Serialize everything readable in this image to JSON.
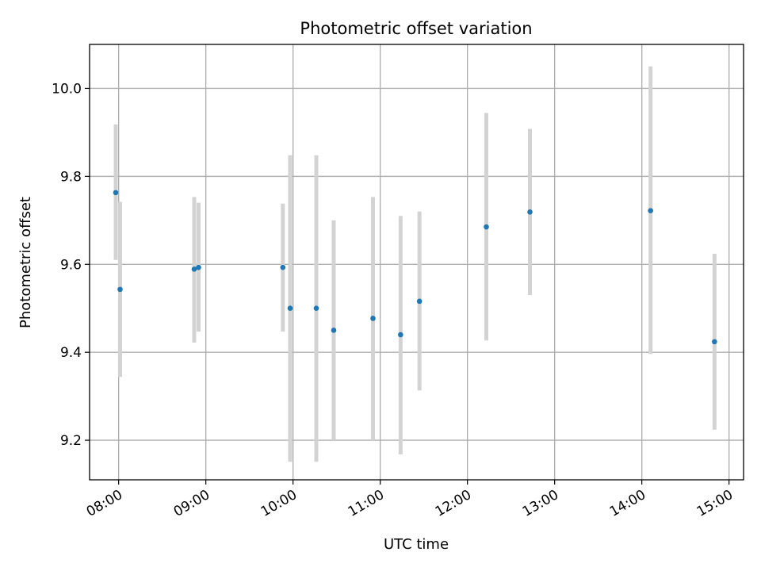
{
  "chart_data": {
    "type": "scatter",
    "title": "Photometric offset variation",
    "xlabel": "UTC time",
    "ylabel": "Photometric offset",
    "x_is_time": true,
    "xlim": [
      "07:40",
      "15:10"
    ],
    "ylim": [
      9.11,
      10.1
    ],
    "xticks": [
      "08:00",
      "09:00",
      "10:00",
      "11:00",
      "12:00",
      "13:00",
      "14:00",
      "15:00"
    ],
    "yticks": [
      9.2,
      9.4,
      9.6,
      9.8,
      10.0
    ],
    "ytick_labels": [
      "9.2",
      "9.4",
      "9.6",
      "9.8",
      "10.0"
    ],
    "grid": true,
    "point_color": "#1f77b4",
    "errorbar_color": "#d3d3d3",
    "points": [
      {
        "x": "07:58",
        "y": 9.763,
        "err_low": 9.61,
        "err_high": 9.918
      },
      {
        "x": "08:01",
        "y": 9.543,
        "err_low": 9.344,
        "err_high": 9.742
      },
      {
        "x": "08:52",
        "y": 9.589,
        "err_low": 9.422,
        "err_high": 9.753
      },
      {
        "x": "08:55",
        "y": 9.593,
        "err_low": 9.447,
        "err_high": 9.74
      },
      {
        "x": "09:53",
        "y": 9.593,
        "err_low": 9.447,
        "err_high": 9.738
      },
      {
        "x": "09:58",
        "y": 9.5,
        "err_low": 9.151,
        "err_high": 9.848
      },
      {
        "x": "10:16",
        "y": 9.5,
        "err_low": 9.151,
        "err_high": 9.848
      },
      {
        "x": "10:28",
        "y": 9.45,
        "err_low": 9.2,
        "err_high": 9.7
      },
      {
        "x": "10:55",
        "y": 9.477,
        "err_low": 9.2,
        "err_high": 9.753
      },
      {
        "x": "11:14",
        "y": 9.44,
        "err_low": 9.168,
        "err_high": 9.71
      },
      {
        "x": "11:27",
        "y": 9.516,
        "err_low": 9.313,
        "err_high": 9.72
      },
      {
        "x": "12:13",
        "y": 9.685,
        "err_low": 9.427,
        "err_high": 9.944
      },
      {
        "x": "12:43",
        "y": 9.719,
        "err_low": 9.53,
        "err_high": 9.908
      },
      {
        "x": "14:06",
        "y": 9.722,
        "err_low": 9.396,
        "err_high": 10.05
      },
      {
        "x": "14:50",
        "y": 9.424,
        "err_low": 9.224,
        "err_high": 9.624
      }
    ]
  }
}
